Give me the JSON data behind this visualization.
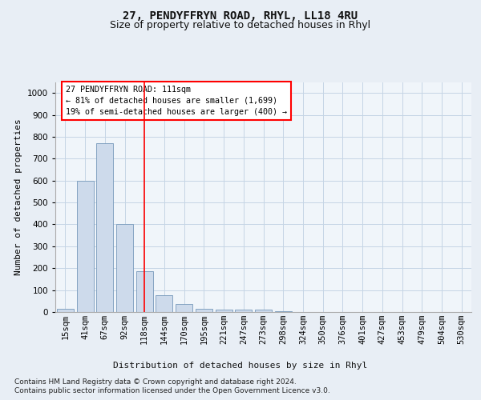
{
  "title": "27, PENDYFFRYN ROAD, RHYL, LL18 4RU",
  "subtitle": "Size of property relative to detached houses in Rhyl",
  "xlabel": "Distribution of detached houses by size in Rhyl",
  "ylabel": "Number of detached properties",
  "bar_labels": [
    "15sqm",
    "41sqm",
    "67sqm",
    "92sqm",
    "118sqm",
    "144sqm",
    "170sqm",
    "195sqm",
    "221sqm",
    "247sqm",
    "273sqm",
    "298sqm",
    "324sqm",
    "350sqm",
    "376sqm",
    "401sqm",
    "427sqm",
    "453sqm",
    "479sqm",
    "504sqm",
    "530sqm"
  ],
  "bar_values": [
    15,
    600,
    770,
    400,
    185,
    75,
    35,
    15,
    10,
    10,
    10,
    5,
    0,
    0,
    0,
    0,
    0,
    0,
    0,
    0,
    0
  ],
  "bar_color": "#cddaeb",
  "bar_edge_color": "#7799bb",
  "highlight_index": 4,
  "ylim": [
    0,
    1050
  ],
  "yticks": [
    0,
    100,
    200,
    300,
    400,
    500,
    600,
    700,
    800,
    900,
    1000
  ],
  "annotation_title": "27 PENDYFFRYN ROAD: 111sqm",
  "annotation_line1": "← 81% of detached houses are smaller (1,699)",
  "annotation_line2": "19% of semi-detached houses are larger (400) →",
  "footer1": "Contains HM Land Registry data © Crown copyright and database right 2024.",
  "footer2": "Contains public sector information licensed under the Open Government Licence v3.0.",
  "background_color": "#e8eef5",
  "plot_bg_color": "#f0f5fa",
  "grid_color": "#c5d5e5",
  "title_fontsize": 10,
  "subtitle_fontsize": 9,
  "axis_label_fontsize": 8,
  "tick_fontsize": 7.5
}
